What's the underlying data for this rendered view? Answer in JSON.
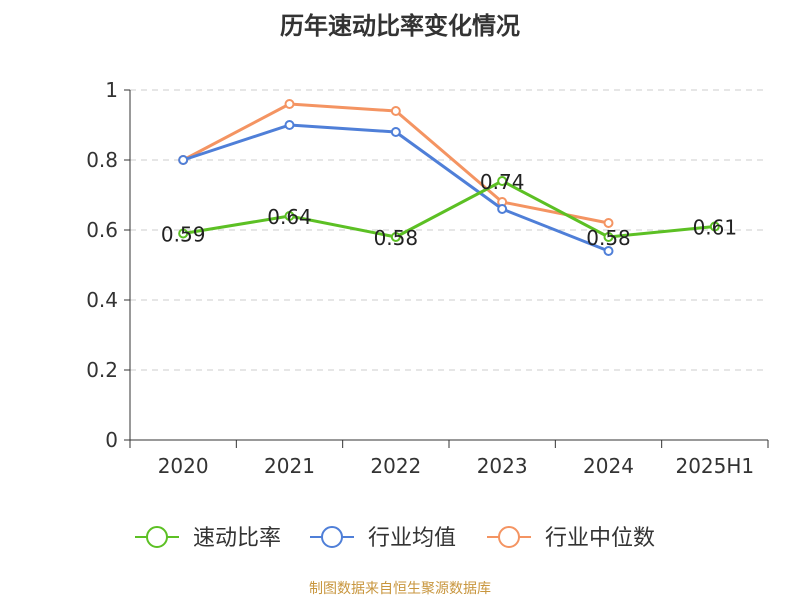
{
  "chart_data": {
    "type": "line",
    "title": "历年速动比率变化情况",
    "categories": [
      "2020",
      "2021",
      "2022",
      "2023",
      "2024",
      "2025H1"
    ],
    "ylim": [
      0,
      1
    ],
    "yticks": [
      "0",
      "0.2",
      "0.4",
      "0.6",
      "0.8",
      "1"
    ],
    "grid": true,
    "legend_position": "bottom",
    "series": [
      {
        "name": "速动比率",
        "color": "#5cc024",
        "values": [
          0.59,
          0.64,
          0.58,
          0.74,
          0.58,
          0.61
        ],
        "labels": [
          "0.59",
          "0.64",
          "0.58",
          "0.74",
          "0.58",
          "0.61"
        ]
      },
      {
        "name": "行业均值",
        "color": "#4f7fd8",
        "values": [
          0.8,
          0.9,
          0.88,
          0.66,
          0.54,
          null
        ]
      },
      {
        "name": "行业中位数",
        "color": "#f49462",
        "values": [
          0.8,
          0.96,
          0.94,
          0.68,
          0.62,
          null
        ]
      }
    ]
  },
  "source": "制图数据来自恒生聚源数据库"
}
